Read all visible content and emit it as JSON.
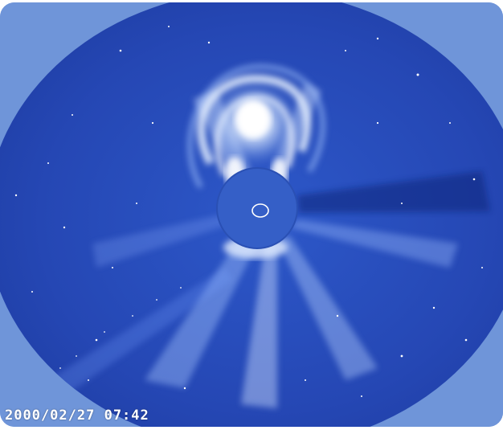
{
  "image": {
    "timestamp": "2000/02/27 07:42"
  }
}
